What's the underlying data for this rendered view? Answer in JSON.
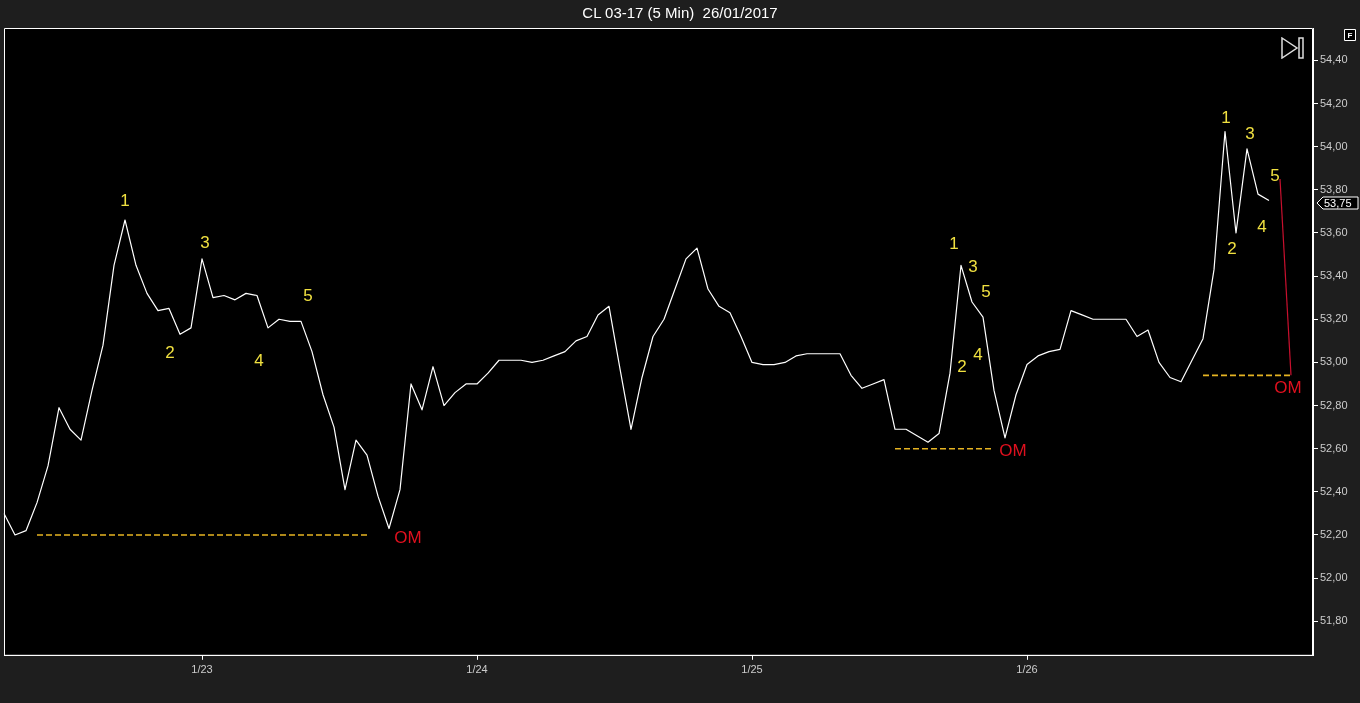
{
  "chart_data": {
    "type": "line",
    "title": "CL 03-17 (5 Min)  26/01/2017",
    "categories": [
      null,
      null,
      null,
      null,
      null,
      null,
      null,
      null,
      null,
      null,
      null,
      null,
      null,
      null,
      null,
      null,
      null,
      null,
      "1/23",
      null,
      null,
      null,
      null,
      null,
      null,
      null,
      null,
      null,
      null,
      null,
      null,
      null,
      null,
      null,
      null,
      null,
      null,
      null,
      null,
      null,
      null,
      null,
      null,
      "1/24",
      null,
      null,
      null,
      null,
      null,
      null,
      null,
      null,
      null,
      null,
      null,
      null,
      null,
      null,
      null,
      null,
      null,
      null,
      null,
      null,
      null,
      null,
      null,
      null,
      "1/25",
      null,
      null,
      null,
      null,
      null,
      null,
      null,
      null,
      null,
      null,
      null,
      null,
      null,
      null,
      null,
      null,
      null,
      null,
      null,
      null,
      null,
      null,
      null,
      null,
      "1/26",
      null,
      null,
      null,
      null,
      null,
      null,
      null,
      null,
      null,
      null,
      null,
      null,
      null,
      null,
      null,
      null,
      null,
      null,
      null,
      null,
      null,
      null,
      null,
      null,
      null,
      null
    ],
    "ylim": [
      51.64,
      54.55
    ],
    "yticks": [
      {
        "value": 51.8,
        "label": "51,80"
      },
      {
        "value": 52,
        "label": "52,00"
      },
      {
        "value": 52.2,
        "label": "52,20"
      },
      {
        "value": 52.4,
        "label": "52,40"
      },
      {
        "value": 52.6,
        "label": "52,60"
      },
      {
        "value": 52.8,
        "label": "52,80"
      },
      {
        "value": 53,
        "label": "53,00"
      },
      {
        "value": 53.2,
        "label": "53,20"
      },
      {
        "value": 53.4,
        "label": "53,40"
      },
      {
        "value": 53.6,
        "label": "53,60"
      },
      {
        "value": 53.8,
        "label": "53,80"
      },
      {
        "value": 54,
        "label": "54,00"
      },
      {
        "value": 54.2,
        "label": "54,20"
      },
      {
        "value": 54.4,
        "label": "54,40"
      }
    ],
    "grid": false,
    "legend": false,
    "series": [
      {
        "color": "#ffffff",
        "line_style": "solid",
        "values": [
          52.3,
          52.2,
          52.22,
          52.35,
          52.52,
          52.79,
          52.69,
          52.64,
          52.87,
          53.08,
          53.45,
          53.66,
          53.45,
          53.32,
          53.24,
          53.25,
          53.13,
          53.16,
          53.48,
          53.3,
          53.31,
          53.29,
          53.32,
          53.31,
          53.16,
          53.2,
          53.19,
          53.19,
          53.05,
          52.85,
          52.7,
          52.41,
          52.64,
          52.57,
          52.38,
          52.23,
          52.41,
          52.9,
          52.78,
          52.98,
          52.8,
          52.86,
          52.9,
          52.9,
          52.95,
          53.01,
          53.01,
          53.01,
          53,
          53.01,
          53.03,
          53.05,
          53.1,
          53.12,
          53.22,
          53.26,
          52.97,
          52.69,
          52.93,
          53.12,
          53.2,
          53.34,
          53.48,
          53.53,
          53.34,
          53.26,
          53.23,
          53.12,
          53,
          52.99,
          52.99,
          53,
          53.03,
          53.04,
          53.04,
          53.04,
          53.04,
          52.94,
          52.88,
          52.9,
          52.92,
          52.69,
          52.69,
          52.66,
          52.63,
          52.67,
          52.95,
          53.45,
          53.28,
          53.21,
          52.87,
          52.65,
          52.85,
          52.99,
          53.03,
          53.05,
          53.06,
          53.24,
          53.22,
          53.2,
          53.2,
          53.2,
          53.2,
          53.12,
          53.15,
          53,
          52.93,
          52.91,
          53.01,
          53.11,
          53.43,
          54.07,
          53.6,
          53.99,
          53.78,
          53.75,
          null,
          null,
          null,
          null
        ]
      },
      {
        "color": "#e6b422",
        "line_style": "dashed",
        "values": [
          null,
          null,
          null,
          52.2,
          null,
          null,
          null,
          null,
          null,
          null,
          null,
          null,
          null,
          null,
          null,
          null,
          null,
          null,
          null,
          null,
          null,
          null,
          null,
          null,
          null,
          null,
          null,
          null,
          null,
          null,
          null,
          null,
          null,
          52.2,
          null,
          null,
          null,
          null,
          null,
          null,
          null,
          null,
          null,
          null,
          null,
          null,
          null,
          null,
          null,
          null,
          null,
          null,
          null,
          null,
          null,
          null,
          null,
          null,
          null,
          null,
          null,
          null,
          null,
          null,
          null,
          null,
          null,
          null,
          null,
          null,
          null,
          null,
          null,
          null,
          null,
          null,
          null,
          null,
          null,
          null,
          null,
          null,
          null,
          null,
          null,
          null,
          null,
          null,
          null,
          null,
          null,
          null,
          null,
          null,
          null,
          null,
          null,
          null,
          null,
          null,
          null,
          null,
          null,
          null,
          null,
          null,
          null,
          null,
          null,
          null,
          null,
          null,
          null,
          null,
          null,
          null,
          null,
          null,
          null,
          null
        ]
      },
      {
        "color": "#e6b422",
        "line_style": "dashed",
        "values": [
          null,
          null,
          null,
          null,
          null,
          null,
          null,
          null,
          null,
          null,
          null,
          null,
          null,
          null,
          null,
          null,
          null,
          null,
          null,
          null,
          null,
          null,
          null,
          null,
          null,
          null,
          null,
          null,
          null,
          null,
          null,
          null,
          null,
          null,
          null,
          null,
          null,
          null,
          null,
          null,
          null,
          null,
          null,
          null,
          null,
          null,
          null,
          null,
          null,
          null,
          null,
          null,
          null,
          null,
          null,
          null,
          null,
          null,
          null,
          null,
          null,
          null,
          null,
          null,
          null,
          null,
          null,
          null,
          null,
          null,
          null,
          null,
          null,
          null,
          null,
          null,
          null,
          null,
          null,
          null,
          null,
          52.6,
          null,
          null,
          null,
          null,
          null,
          null,
          null,
          null,
          52.6,
          null,
          null,
          null,
          null,
          null,
          null,
          null,
          null,
          null,
          null,
          null,
          null,
          null,
          null,
          null,
          null,
          null,
          null,
          null,
          null,
          null,
          null,
          null,
          null,
          null,
          null,
          null,
          null,
          null
        ]
      },
      {
        "color": "#e6b422",
        "line_style": "dashed",
        "values": [
          null,
          null,
          null,
          null,
          null,
          null,
          null,
          null,
          null,
          null,
          null,
          null,
          null,
          null,
          null,
          null,
          null,
          null,
          null,
          null,
          null,
          null,
          null,
          null,
          null,
          null,
          null,
          null,
          null,
          null,
          null,
          null,
          null,
          null,
          null,
          null,
          null,
          null,
          null,
          null,
          null,
          null,
          null,
          null,
          null,
          null,
          null,
          null,
          null,
          null,
          null,
          null,
          null,
          null,
          null,
          null,
          null,
          null,
          null,
          null,
          null,
          null,
          null,
          null,
          null,
          null,
          null,
          null,
          null,
          null,
          null,
          null,
          null,
          null,
          null,
          null,
          null,
          null,
          null,
          null,
          null,
          null,
          null,
          null,
          null,
          null,
          null,
          null,
          null,
          null,
          null,
          null,
          null,
          null,
          null,
          null,
          null,
          null,
          null,
          null,
          null,
          null,
          null,
          null,
          null,
          null,
          null,
          null,
          null,
          52.94,
          null,
          null,
          null,
          null,
          null,
          null,
          null,
          52.94,
          null,
          null
        ]
      },
      {
        "color": "#c8102e",
        "line_style": "solid",
        "values": [
          null,
          null,
          null,
          null,
          null,
          null,
          null,
          null,
          null,
          null,
          null,
          null,
          null,
          null,
          null,
          null,
          null,
          null,
          null,
          null,
          null,
          null,
          null,
          null,
          null,
          null,
          null,
          null,
          null,
          null,
          null,
          null,
          null,
          null,
          null,
          null,
          null,
          null,
          null,
          null,
          null,
          null,
          null,
          null,
          null,
          null,
          null,
          null,
          null,
          null,
          null,
          null,
          null,
          null,
          null,
          null,
          null,
          null,
          null,
          null,
          null,
          null,
          null,
          null,
          null,
          null,
          null,
          null,
          null,
          null,
          null,
          null,
          null,
          null,
          null,
          null,
          null,
          null,
          null,
          null,
          null,
          null,
          null,
          null,
          null,
          null,
          null,
          null,
          null,
          null,
          null,
          null,
          null,
          null,
          null,
          null,
          null,
          null,
          null,
          null,
          null,
          null,
          null,
          null,
          null,
          null,
          null,
          null,
          null,
          null,
          null,
          null,
          null,
          null,
          null,
          null,
          53.85,
          52.94,
          null,
          null
        ]
      }
    ],
    "annotations": [
      "1",
      "2",
      "3",
      "4",
      "5",
      "OM",
      "1",
      "2",
      "3",
      "4",
      "5",
      "OM",
      "1",
      "2",
      "3",
      "4",
      "5",
      "OM",
      "53,75",
      "F"
    ]
  }
}
